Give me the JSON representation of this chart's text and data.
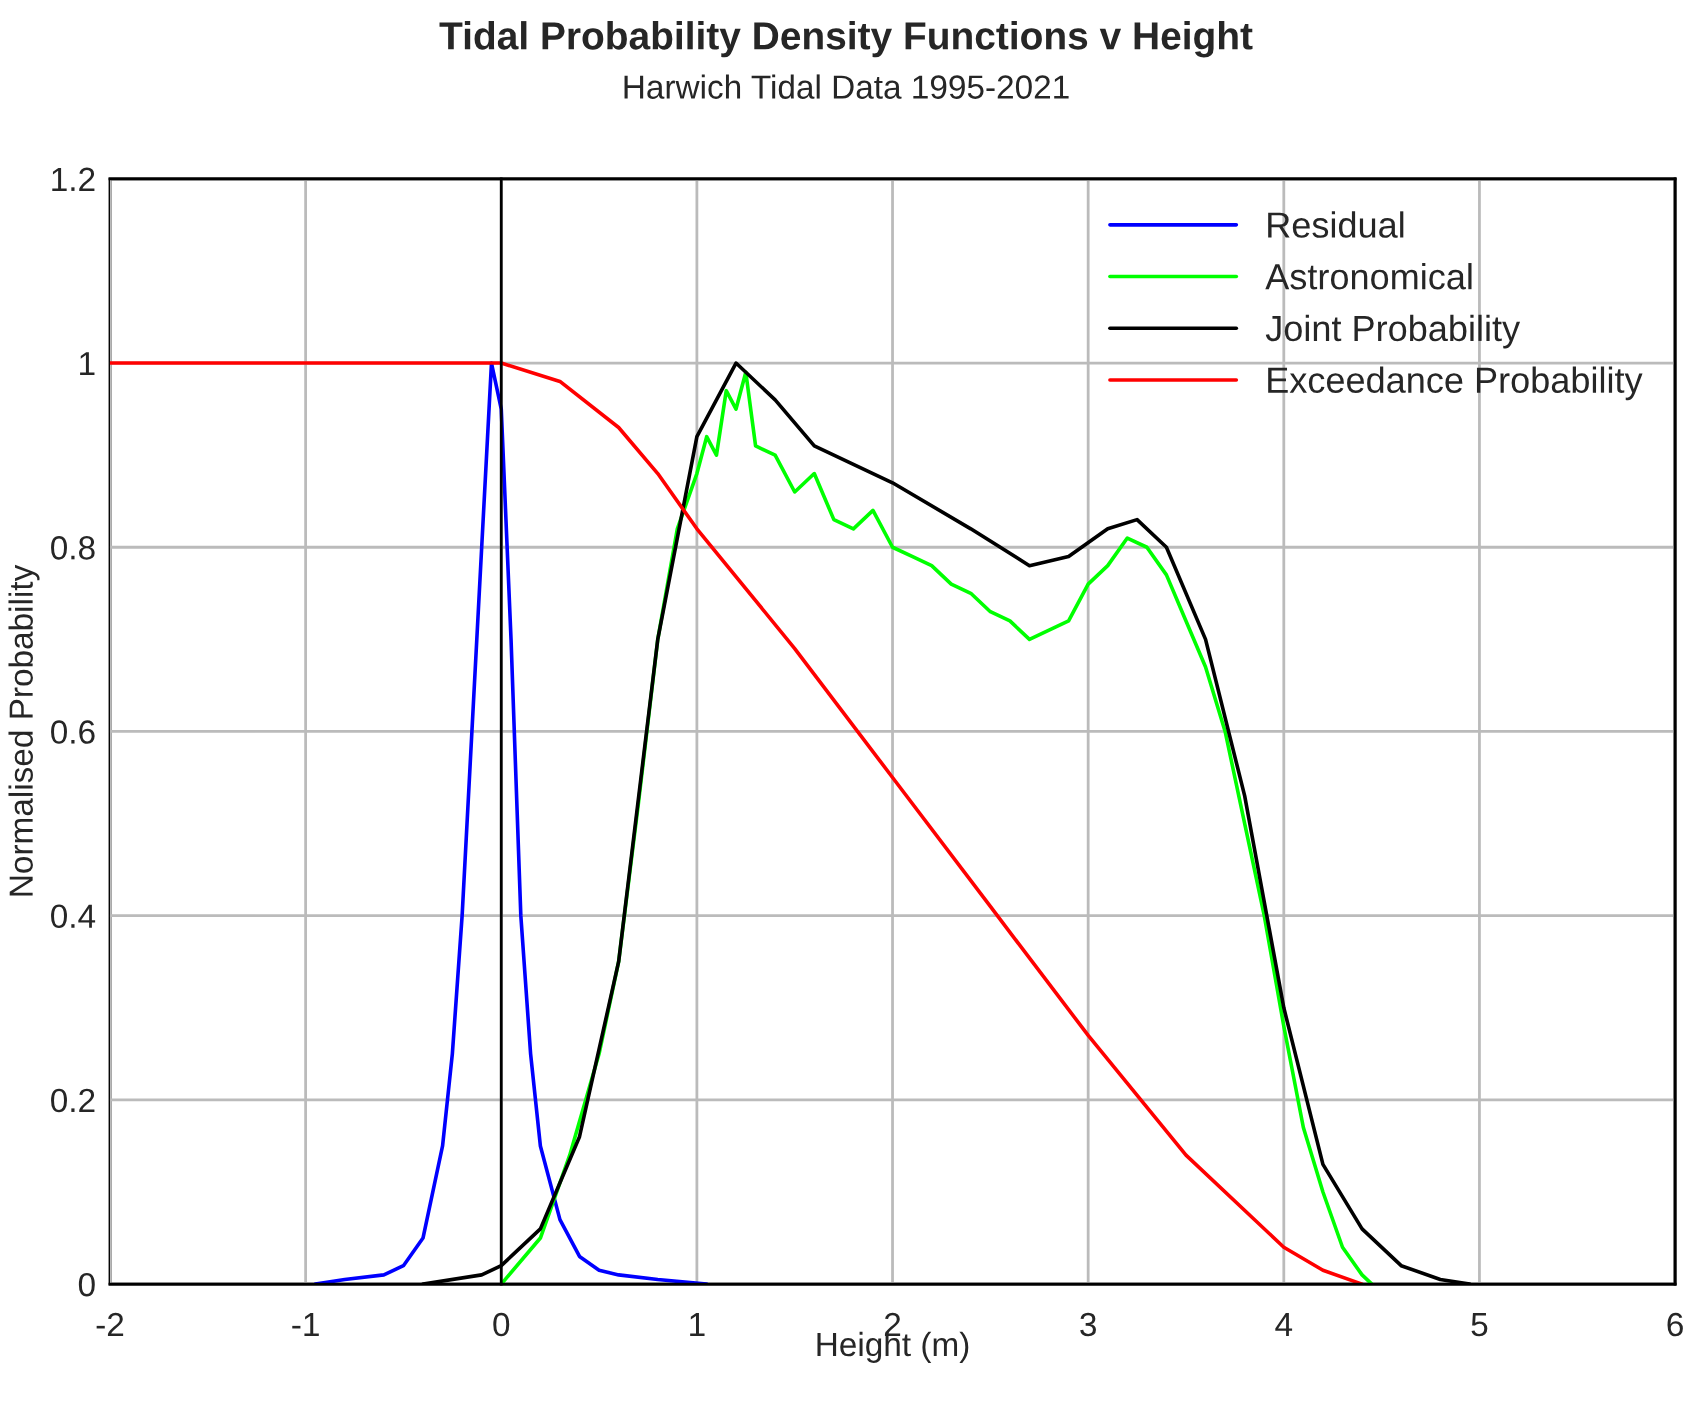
{
  "chart_data": {
    "type": "line",
    "title": "Tidal Probability Density Functions v Height",
    "subtitle": "Harwich Tidal Data 1995-2021",
    "xlabel": "Height (m)",
    "ylabel": "Normalised Probability",
    "xlim": [
      -2,
      6
    ],
    "xticks": [
      -2,
      -1,
      0,
      1,
      2,
      3,
      4,
      5,
      6
    ],
    "ylim": [
      0,
      1.2
    ],
    "yticks": [
      0,
      0.2,
      0.4,
      0.6,
      0.8,
      1,
      1.2
    ],
    "grid": true,
    "legend": "top right",
    "marker": "none",
    "line_style": "solid",
    "series": [
      {
        "name": "Residual",
        "color": "#0000ff",
        "x": [
          -0.95,
          -0.8,
          -0.6,
          -0.5,
          -0.4,
          -0.3,
          -0.25,
          -0.2,
          -0.15,
          -0.1,
          -0.05,
          0,
          0.05,
          0.1,
          0.15,
          0.2,
          0.3,
          0.4,
          0.5,
          0.6,
          0.8,
          1.05
        ],
        "values": [
          0,
          0.005,
          0.01,
          0.02,
          0.05,
          0.15,
          0.25,
          0.4,
          0.6,
          0.8,
          1.0,
          0.95,
          0.7,
          0.4,
          0.25,
          0.15,
          0.07,
          0.03,
          0.015,
          0.01,
          0.005,
          0
        ]
      },
      {
        "name": "Astronomical",
        "color": "#00ff00",
        "x": [
          0,
          0.2,
          0.35,
          0.5,
          0.6,
          0.7,
          0.8,
          0.9,
          1.0,
          1.05,
          1.1,
          1.15,
          1.2,
          1.25,
          1.3,
          1.4,
          1.5,
          1.6,
          1.7,
          1.8,
          1.9,
          2.0,
          2.1,
          2.2,
          2.3,
          2.4,
          2.5,
          2.6,
          2.7,
          2.8,
          2.9,
          3.0,
          3.1,
          3.2,
          3.3,
          3.4,
          3.5,
          3.6,
          3.7,
          3.8,
          3.9,
          4.0,
          4.1,
          4.2,
          4.3,
          4.4,
          4.45
        ],
        "values": [
          0,
          0.05,
          0.14,
          0.25,
          0.35,
          0.52,
          0.7,
          0.82,
          0.88,
          0.92,
          0.9,
          0.97,
          0.95,
          0.99,
          0.91,
          0.9,
          0.86,
          0.88,
          0.83,
          0.82,
          0.84,
          0.8,
          0.79,
          0.78,
          0.76,
          0.75,
          0.73,
          0.72,
          0.7,
          0.71,
          0.72,
          0.76,
          0.78,
          0.81,
          0.8,
          0.77,
          0.72,
          0.67,
          0.6,
          0.5,
          0.4,
          0.28,
          0.17,
          0.1,
          0.04,
          0.01,
          0
        ]
      },
      {
        "name": "Joint Probability",
        "color": "#000000",
        "x": [
          -0.4,
          -0.1,
          0,
          0.2,
          0.4,
          0.6,
          0.8,
          1.0,
          1.2,
          1.4,
          1.6,
          2.0,
          2.4,
          2.7,
          2.9,
          3.1,
          3.25,
          3.4,
          3.6,
          3.8,
          4.0,
          4.2,
          4.4,
          4.6,
          4.8,
          4.95
        ],
        "values": [
          0,
          0.01,
          0.02,
          0.06,
          0.16,
          0.35,
          0.7,
          0.92,
          1.0,
          0.96,
          0.91,
          0.87,
          0.82,
          0.78,
          0.79,
          0.82,
          0.83,
          0.8,
          0.7,
          0.53,
          0.3,
          0.13,
          0.06,
          0.02,
          0.005,
          0
        ]
      },
      {
        "name": "Exceedance Probability",
        "color": "#ff0000",
        "x": [
          -2,
          0,
          0.3,
          0.6,
          0.8,
          1.0,
          1.5,
          2.0,
          2.5,
          3.0,
          3.5,
          4.0,
          4.2,
          4.4
        ],
        "values": [
          1,
          1,
          0.98,
          0.93,
          0.88,
          0.82,
          0.69,
          0.55,
          0.41,
          0.27,
          0.14,
          0.04,
          0.015,
          0
        ]
      }
    ]
  }
}
